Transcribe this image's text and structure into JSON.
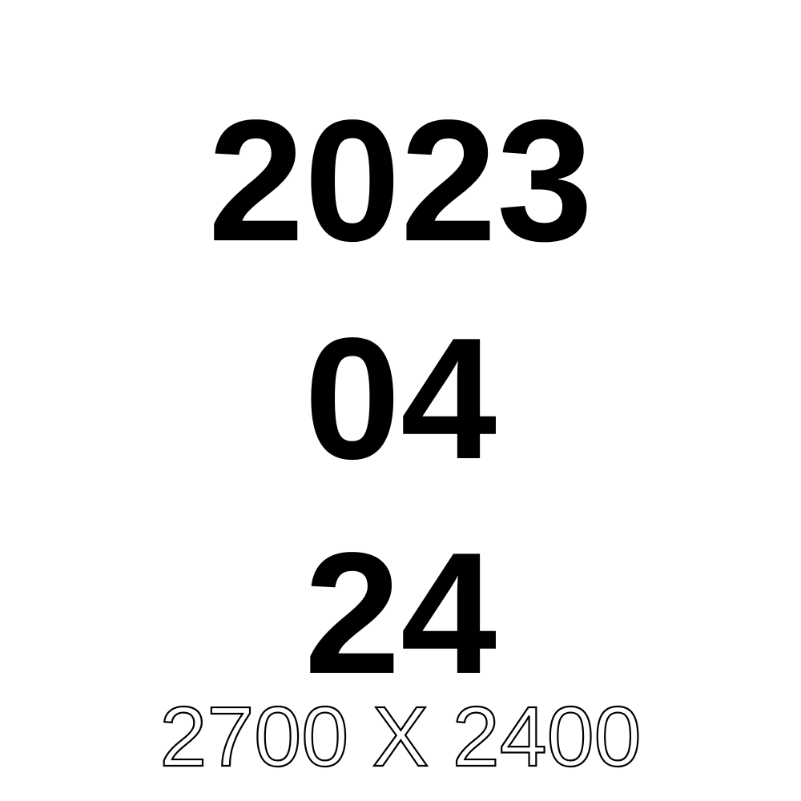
{
  "date": {
    "year": "2023",
    "month": "04",
    "day": "24"
  },
  "dimensions": {
    "label": "2700 X 2400"
  },
  "colors": {
    "background": "#ffffff",
    "text": "#000000"
  }
}
